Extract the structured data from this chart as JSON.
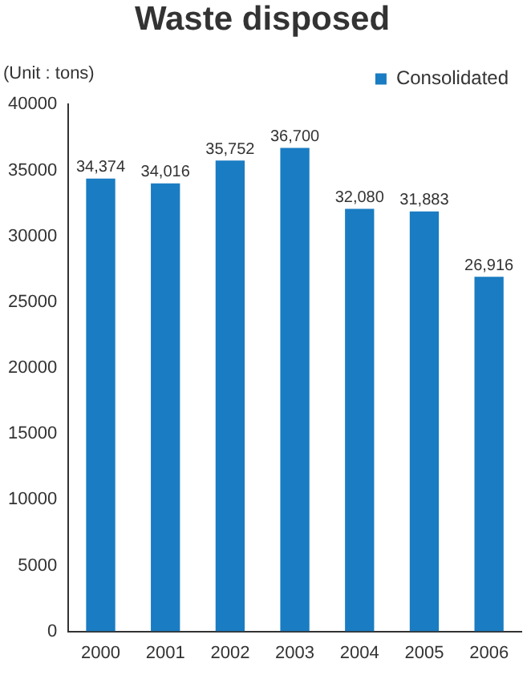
{
  "chart_data": {
    "type": "bar",
    "title": "Waste disposed",
    "ylabel": "(Unit : tons)",
    "categories": [
      "2000",
      "2001",
      "2002",
      "2003",
      "2004",
      "2005",
      "2006"
    ],
    "series": [
      {
        "name": "Consolidated",
        "color": "#1a7cc2",
        "values": [
          34374,
          34016,
          35752,
          36700,
          32080,
          31883,
          26916
        ],
        "value_labels": [
          "34,374",
          "34,016",
          "35,752",
          "36,700",
          "32,080",
          "31,883",
          "26,916"
        ]
      }
    ],
    "ylim": [
      0,
      40000
    ],
    "yticks": [
      0,
      5000,
      10000,
      15000,
      20000,
      25000,
      30000,
      35000,
      40000
    ],
    "grid": false,
    "legend": "top right"
  }
}
